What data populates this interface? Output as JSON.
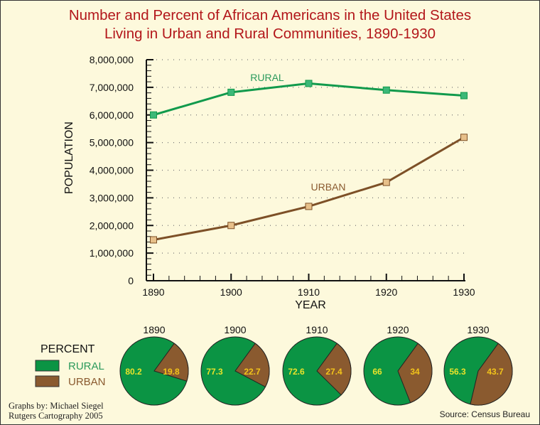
{
  "chart_data": [
    {
      "type": "line",
      "title": "Number and Percent of African Americans in the United States",
      "subtitle": "Living in Urban and Rural Communities, 1890-1930",
      "xlabel": "YEAR",
      "ylabel": "POPULATION",
      "x": [
        1890,
        1900,
        1910,
        1920,
        1930
      ],
      "ylim": [
        0,
        8000000
      ],
      "yticks": [
        "0",
        "1,000,000",
        "2,000,000",
        "3,000,000",
        "4,000,000",
        "5,000,000",
        "6,000,000",
        "7,000,000",
        "8,000,000"
      ],
      "grid": true,
      "series": [
        {
          "name": "RURAL",
          "color": "#119a4c",
          "marker_color": "#3cb878",
          "values": [
            6000000,
            6820000,
            7140000,
            6900000,
            6700000
          ]
        },
        {
          "name": "URBAN",
          "color": "#7d5027",
          "marker_color": "#e7c08a",
          "values": [
            1480000,
            2000000,
            2690000,
            3560000,
            5190000
          ]
        }
      ]
    },
    {
      "type": "pie",
      "legend_title": "PERCENT",
      "legend": [
        {
          "name": "RURAL",
          "color": "#0b9444",
          "label_color": "#2a9a5c"
        },
        {
          "name": "URBAN",
          "color": "#8a5a2f",
          "label_color": "#8a5a2f"
        }
      ],
      "pies": [
        {
          "year": "1890",
          "rural": 80.2,
          "urban": 19.8,
          "rural_label": "80.2",
          "urban_label": "19.8"
        },
        {
          "year": "1900",
          "rural": 77.3,
          "urban": 22.7,
          "rural_label": "77.3",
          "urban_label": "22.7"
        },
        {
          "year": "1910",
          "rural": 72.6,
          "urban": 27.4,
          "rural_label": "72.6",
          "urban_label": "27.4"
        },
        {
          "year": "1920",
          "rural": 66,
          "urban": 34,
          "rural_label": "66",
          "urban_label": "34"
        },
        {
          "year": "1930",
          "rural": 56.3,
          "urban": 43.7,
          "rural_label": "56.3",
          "urban_label": "43.7"
        }
      ]
    }
  ],
  "credits": {
    "line1": "Graphs by: Michael Siegel",
    "line2": "Rutgers Cartography 2005"
  },
  "source": "Source: Census Bureau"
}
